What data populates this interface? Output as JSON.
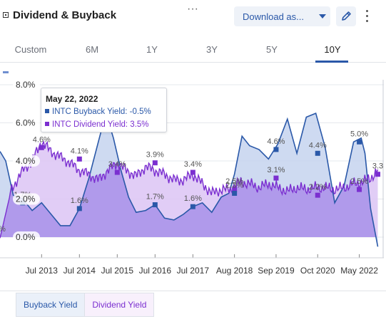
{
  "header": {
    "title": "Dividend & Buyback",
    "download_label": "Download as..."
  },
  "tabs": [
    {
      "label": "Custom",
      "active": false
    },
    {
      "label": "6M",
      "active": false
    },
    {
      "label": "1Y",
      "active": false
    },
    {
      "label": "3Y",
      "active": false
    },
    {
      "label": "5Y",
      "active": false
    },
    {
      "label": "10Y",
      "active": true
    }
  ],
  "tooltip": {
    "date": "May 22, 2022",
    "buyback_text": "INTC Buyback Yield: -0.5%",
    "dividend_text": "INTC Dividend Yield: 3.5%"
  },
  "legend": {
    "buyback": "Buyback Yield",
    "dividend": "Dividend Yield"
  },
  "colors": {
    "buyback_line": "#2a58a8",
    "buyback_fill": "#c6d4ef",
    "dividend_line": "#7b2fd0",
    "dividend_fill": "#dcc4f4",
    "overlap_fill": "#ae98ea"
  },
  "chart_data": {
    "type": "area",
    "ylim": [
      -1,
      8
    ],
    "xlim": [
      2012.4,
      2022.55
    ],
    "y_ticks": [
      0,
      2,
      4,
      6,
      8
    ],
    "y_tick_labels": [
      "0.0%",
      "2.0%",
      "4.0%",
      "6.0%",
      "8.0%"
    ],
    "x_tick_values": [
      2013.5,
      2014.5,
      2015.5,
      2016.5,
      2017.5,
      2018.6,
      2019.7,
      2020.8,
      2021.9
    ],
    "x_tick_labels": [
      "Jul 2013",
      "Jul 2014",
      "Jul 2015",
      "Jul 2016",
      "Jul 2017",
      "Aug 2018",
      "Sep 2019",
      "Oct 2020",
      "May 2022"
    ],
    "series": [
      {
        "name": "Buyback Yield",
        "x": [
          2012.4,
          2012.55,
          2012.75,
          2013.0,
          2013.25,
          2013.5,
          2013.75,
          2014.0,
          2014.25,
          2014.5,
          2014.75,
          2015.0,
          2015.2,
          2015.4,
          2015.6,
          2015.8,
          2016.0,
          2016.25,
          2016.5,
          2016.75,
          2017.0,
          2017.25,
          2017.5,
          2017.75,
          2018.0,
          2018.25,
          2018.45,
          2018.6,
          2018.8,
          2019.0,
          2019.25,
          2019.5,
          2019.75,
          2020.0,
          2020.25,
          2020.5,
          2020.75,
          2021.0,
          2021.25,
          2021.5,
          2021.75,
          2021.95,
          2022.05,
          2022.2,
          2022.39
        ],
        "values": [
          4.5,
          4.0,
          2.2,
          2.0,
          1.4,
          1.8,
          1.2,
          0.6,
          0.6,
          1.5,
          3.1,
          5.0,
          6.5,
          5.2,
          3.5,
          2.1,
          1.3,
          1.4,
          1.7,
          1.0,
          0.9,
          1.2,
          1.6,
          1.8,
          1.3,
          2.1,
          2.3,
          3.3,
          5.3,
          4.8,
          4.6,
          4.1,
          4.9,
          6.2,
          4.4,
          6.3,
          6.5,
          4.7,
          1.8,
          2.7,
          5.0,
          5.2,
          4.4,
          1.5,
          -0.5
        ]
      },
      {
        "name": "Dividend Yield",
        "x": [
          2012.4,
          2012.7,
          2013.0,
          2013.25,
          2013.5,
          2013.75,
          2014.0,
          2014.25,
          2014.5,
          2014.75,
          2015.0,
          2015.25,
          2015.5,
          2015.75,
          2016.0,
          2016.25,
          2016.5,
          2016.75,
          2017.0,
          2017.25,
          2017.5,
          2017.75,
          2018.0,
          2018.25,
          2018.5,
          2018.75,
          2019.0,
          2019.25,
          2019.5,
          2019.75,
          2020.0,
          2020.25,
          2020.5,
          2020.75,
          2021.0,
          2021.25,
          2021.5,
          2021.75,
          2022.0,
          2022.2,
          2022.39
        ],
        "values": [
          -0.05,
          2.5,
          3.5,
          4.0,
          5.0,
          4.5,
          4.2,
          3.9,
          3.5,
          3.3,
          3.0,
          3.5,
          3.9,
          3.5,
          3.2,
          3.7,
          3.5,
          3.3,
          3.0,
          3.0,
          3.3,
          2.8,
          2.3,
          2.5,
          2.5,
          2.9,
          2.8,
          2.6,
          2.8,
          2.6,
          2.4,
          2.6,
          2.5,
          2.6,
          2.6,
          2.5,
          2.6,
          2.8,
          2.9,
          3.1,
          3.5
        ]
      }
    ],
    "annotations": [
      {
        "series": "Buyback Yield",
        "x": 2013.0,
        "y": 1.8,
        "label": "1.7%"
      },
      {
        "series": "Dividend Yield",
        "x": 2013.5,
        "y": 4.7,
        "label": "4.6%"
      },
      {
        "series": "Dividend Yield",
        "x": 2014.5,
        "y": 4.1,
        "label": "4.1%"
      },
      {
        "series": "Buyback Yield",
        "x": 2014.5,
        "y": 1.5,
        "label": "1.6%"
      },
      {
        "series": "Dividend Yield",
        "x": 2015.5,
        "y": 3.4,
        "label": "3.4%"
      },
      {
        "series": "Dividend Yield",
        "x": 2016.5,
        "y": 3.9,
        "label": "3.9%"
      },
      {
        "series": "Buyback Yield",
        "x": 2016.5,
        "y": 1.7,
        "label": "1.7%"
      },
      {
        "series": "Buyback Yield",
        "x": 2017.5,
        "y": 1.6,
        "label": "1.6%"
      },
      {
        "series": "Dividend Yield",
        "x": 2017.5,
        "y": 3.4,
        "label": "3.4%"
      },
      {
        "series": "Dividend Yield",
        "x": 2018.6,
        "y": 2.5,
        "label": "2.5%"
      },
      {
        "series": "Buyback Yield",
        "x": 2018.6,
        "y": 2.3,
        "label": "2.3%"
      },
      {
        "series": "Buyback Yield",
        "x": 2019.7,
        "y": 4.6,
        "label": "4.6%"
      },
      {
        "series": "Dividend Yield",
        "x": 2019.7,
        "y": 3.1,
        "label": "3.1%"
      },
      {
        "series": "Buyback Yield",
        "x": 2020.8,
        "y": 4.4,
        "label": "4.4%"
      },
      {
        "series": "Dividend Yield",
        "x": 2020.8,
        "y": 2.2,
        "label": "2.2%"
      },
      {
        "series": "Buyback Yield",
        "x": 2021.9,
        "y": 5.0,
        "label": "5.0%"
      },
      {
        "series": "Dividend Yield",
        "x": 2021.9,
        "y": 2.5,
        "label": "2.5%"
      },
      {
        "series": "Dividend Yield",
        "x": 2022.39,
        "y": 3.3,
        "label": "3.3"
      },
      {
        "series": "Dividend Yield",
        "x": 2012.4,
        "y": 0.0,
        "label": "0%"
      }
    ]
  }
}
